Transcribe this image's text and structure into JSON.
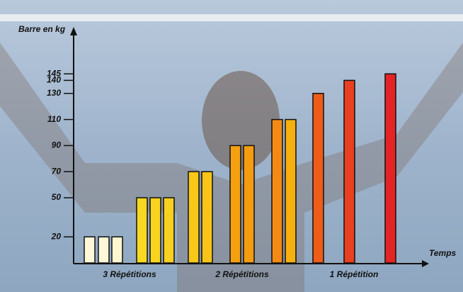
{
  "chart_data": {
    "type": "bar",
    "y_label": "Barre en kg",
    "x_label": "Temps",
    "groups": [
      "3 Répétitions",
      "2 Répétitions",
      "1 Répétition"
    ],
    "categories": [
      null,
      null,
      null,
      null,
      null,
      null,
      null,
      null,
      null,
      null,
      null,
      null,
      null,
      null,
      null
    ],
    "values": [
      20,
      20,
      20,
      50,
      50,
      50,
      70,
      70,
      90,
      90,
      110,
      110,
      130,
      140,
      145
    ],
    "colors": [
      "#fff8d8",
      "#fff8d8",
      "#fff6d0",
      "#f8d820",
      "#f8d420",
      "#f8d020",
      "#f8c818",
      "#f8c418",
      "#f4a010",
      "#f49c10",
      "#f48a14",
      "#f5b010",
      "#ee5c18",
      "#e84020",
      "#e42424"
    ],
    "ylim": [
      0,
      150
    ],
    "yticks": [
      20,
      50,
      70,
      90,
      110,
      130,
      140,
      145
    ]
  }
}
